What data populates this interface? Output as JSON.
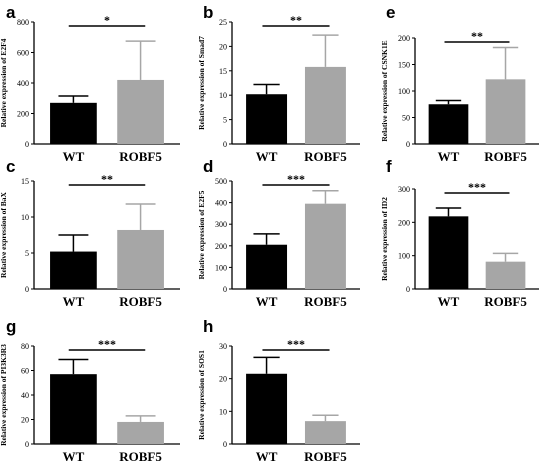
{
  "colors": {
    "wt": "#000000",
    "robf5": "#a6a6a6",
    "axis": "#000000"
  },
  "chart_data": [
    {
      "panel": "a",
      "type": "bar",
      "categories": [
        "WT",
        "ROBF5"
      ],
      "values": [
        270,
        420
      ],
      "errors": [
        45,
        255
      ],
      "ylabel": "Relative expression of E2F4",
      "ylim": [
        0,
        800
      ],
      "yticks": [
        0,
        200,
        400,
        600,
        800
      ],
      "significance": "*"
    },
    {
      "panel": "b",
      "type": "bar",
      "categories": [
        "WT",
        "ROBF5"
      ],
      "values": [
        10.2,
        15.8
      ],
      "errors": [
        2.0,
        6.5
      ],
      "ylabel": "Relative expression of Smad7",
      "ylim": [
        0,
        25
      ],
      "yticks": [
        0,
        5,
        10,
        15,
        20,
        25
      ],
      "significance": "**"
    },
    {
      "panel": "e",
      "type": "bar",
      "categories": [
        "WT",
        "ROBF5"
      ],
      "values": [
        75,
        122
      ],
      "errors": [
        7,
        60
      ],
      "ylabel": "Relative expression of  CSNK1E",
      "ylim": [
        0,
        200
      ],
      "yticks": [
        0,
        50,
        100,
        150,
        200
      ],
      "significance": "**"
    },
    {
      "panel": "c",
      "type": "bar",
      "categories": [
        "WT",
        "ROBF5"
      ],
      "values": [
        5.2,
        8.2
      ],
      "errors": [
        2.3,
        3.6
      ],
      "ylabel": "Relative expression of  BaX",
      "ylim": [
        0,
        15
      ],
      "yticks": [
        0,
        5,
        10,
        15
      ],
      "significance": "**"
    },
    {
      "panel": "d",
      "type": "bar",
      "categories": [
        "WT",
        "ROBF5"
      ],
      "values": [
        205,
        395
      ],
      "errors": [
        50,
        60
      ],
      "ylabel": "Relative expression of E2F5",
      "ylim": [
        0,
        500
      ],
      "yticks": [
        0,
        100,
        200,
        300,
        400,
        500
      ],
      "significance": "***"
    },
    {
      "panel": "f",
      "type": "bar",
      "categories": [
        "WT",
        "ROBF5"
      ],
      "values": [
        218,
        82
      ],
      "errors": [
        25,
        25
      ],
      "ylabel": "Relative expression of ID2",
      "ylim": [
        0,
        300
      ],
      "yticks": [
        0,
        100,
        200,
        300
      ],
      "significance": "***"
    },
    {
      "panel": "g",
      "type": "bar",
      "categories": [
        "WT",
        "ROBF5"
      ],
      "values": [
        57,
        18
      ],
      "errors": [
        12,
        5
      ],
      "ylabel": "Relative expression of PI3K3R3",
      "ylim": [
        0,
        80
      ],
      "yticks": [
        0,
        20,
        40,
        60,
        80
      ],
      "significance": "***"
    },
    {
      "panel": "h",
      "type": "bar",
      "categories": [
        "WT",
        "ROBF5"
      ],
      "values": [
        21.5,
        7
      ],
      "errors": [
        5,
        1.8
      ],
      "ylabel": "Relative expression of  SOS1",
      "ylim": [
        0,
        30
      ],
      "yticks": [
        0,
        10,
        20,
        30
      ],
      "significance": "***"
    }
  ]
}
